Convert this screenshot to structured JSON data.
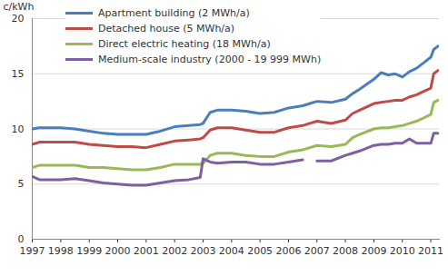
{
  "chart_data": {
    "type": "line",
    "y_label": "c/kWh",
    "x": [
      1997,
      1997.25,
      1997.5,
      1998,
      1998.5,
      1999,
      1999.5,
      2000,
      2000.5,
      2001,
      2001.5,
      2002,
      2002.5,
      2002.9,
      2003,
      2003.25,
      2003.5,
      2004,
      2004.5,
      2005,
      2005.5,
      2006,
      2006.5,
      2006.75,
      2007,
      2007.5,
      2008,
      2008.25,
      2008.5,
      2009,
      2009.25,
      2009.5,
      2009.75,
      2010,
      2010.25,
      2010.5,
      2010.75,
      2011,
      2011.1,
      2011.25
    ],
    "series": [
      {
        "name": "Apartment building (2 MWh/a)",
        "color": "#4a7ebb",
        "values": [
          10.0,
          10.1,
          10.1,
          10.1,
          10.0,
          9.8,
          9.6,
          9.5,
          9.5,
          9.5,
          9.8,
          10.2,
          10.3,
          10.4,
          10.5,
          11.5,
          11.7,
          11.7,
          11.6,
          11.4,
          11.5,
          11.9,
          12.1,
          12.3,
          12.5,
          12.4,
          12.7,
          13.2,
          13.6,
          14.5,
          15.1,
          14.9,
          15.0,
          14.7,
          15.2,
          15.5,
          16.0,
          16.5,
          17.2,
          17.5
        ]
      },
      {
        "name": "Detached house (5 MWh/a)",
        "color": "#be4b48",
        "values": [
          8.6,
          8.8,
          8.8,
          8.8,
          8.8,
          8.6,
          8.5,
          8.4,
          8.4,
          8.3,
          8.6,
          8.9,
          9.0,
          9.1,
          9.2,
          9.9,
          10.1,
          10.1,
          9.9,
          9.7,
          9.7,
          10.1,
          10.3,
          10.5,
          10.7,
          10.5,
          10.8,
          11.4,
          11.7,
          12.3,
          12.4,
          12.5,
          12.6,
          12.6,
          12.9,
          13.1,
          13.4,
          13.7,
          15.0,
          15.3
        ]
      },
      {
        "name": "Direct electric heating (18 MWh/a)",
        "color": "#98b954",
        "values": [
          6.5,
          6.7,
          6.7,
          6.7,
          6.7,
          6.5,
          6.5,
          6.4,
          6.3,
          6.3,
          6.5,
          6.8,
          6.8,
          6.8,
          6.9,
          7.6,
          7.8,
          7.8,
          7.6,
          7.5,
          7.5,
          7.9,
          8.1,
          8.3,
          8.5,
          8.4,
          8.6,
          9.2,
          9.5,
          10.0,
          10.1,
          10.1,
          10.2,
          10.3,
          10.5,
          10.7,
          11.0,
          11.3,
          12.4,
          12.6
        ]
      },
      {
        "name": "Medium-scale industry (2000 - 19 999 MWh)",
        "color": "#7d60a0",
        "values": [
          5.7,
          5.4,
          5.4,
          5.4,
          5.5,
          5.3,
          5.1,
          5.0,
          4.9,
          4.9,
          5.1,
          5.3,
          5.4,
          5.6,
          7.3,
          7.0,
          6.9,
          7.0,
          7.0,
          6.8,
          6.8,
          7.0,
          7.2,
          null,
          7.1,
          7.1,
          7.6,
          7.8,
          8.0,
          8.5,
          8.6,
          8.6,
          8.7,
          8.7,
          9.1,
          8.7,
          8.7,
          8.7,
          9.6,
          9.6
        ]
      }
    ],
    "xlim": [
      1997,
      2011.3
    ],
    "xticks": [
      1997,
      1998,
      1999,
      2000,
      2001,
      2002,
      2003,
      2004,
      2005,
      2006,
      2007,
      2008,
      2009,
      2010,
      2011
    ],
    "ylim": [
      0,
      20
    ],
    "yticks": [
      0,
      5,
      10,
      15,
      20
    ],
    "grid": true,
    "legend": "upper left"
  }
}
